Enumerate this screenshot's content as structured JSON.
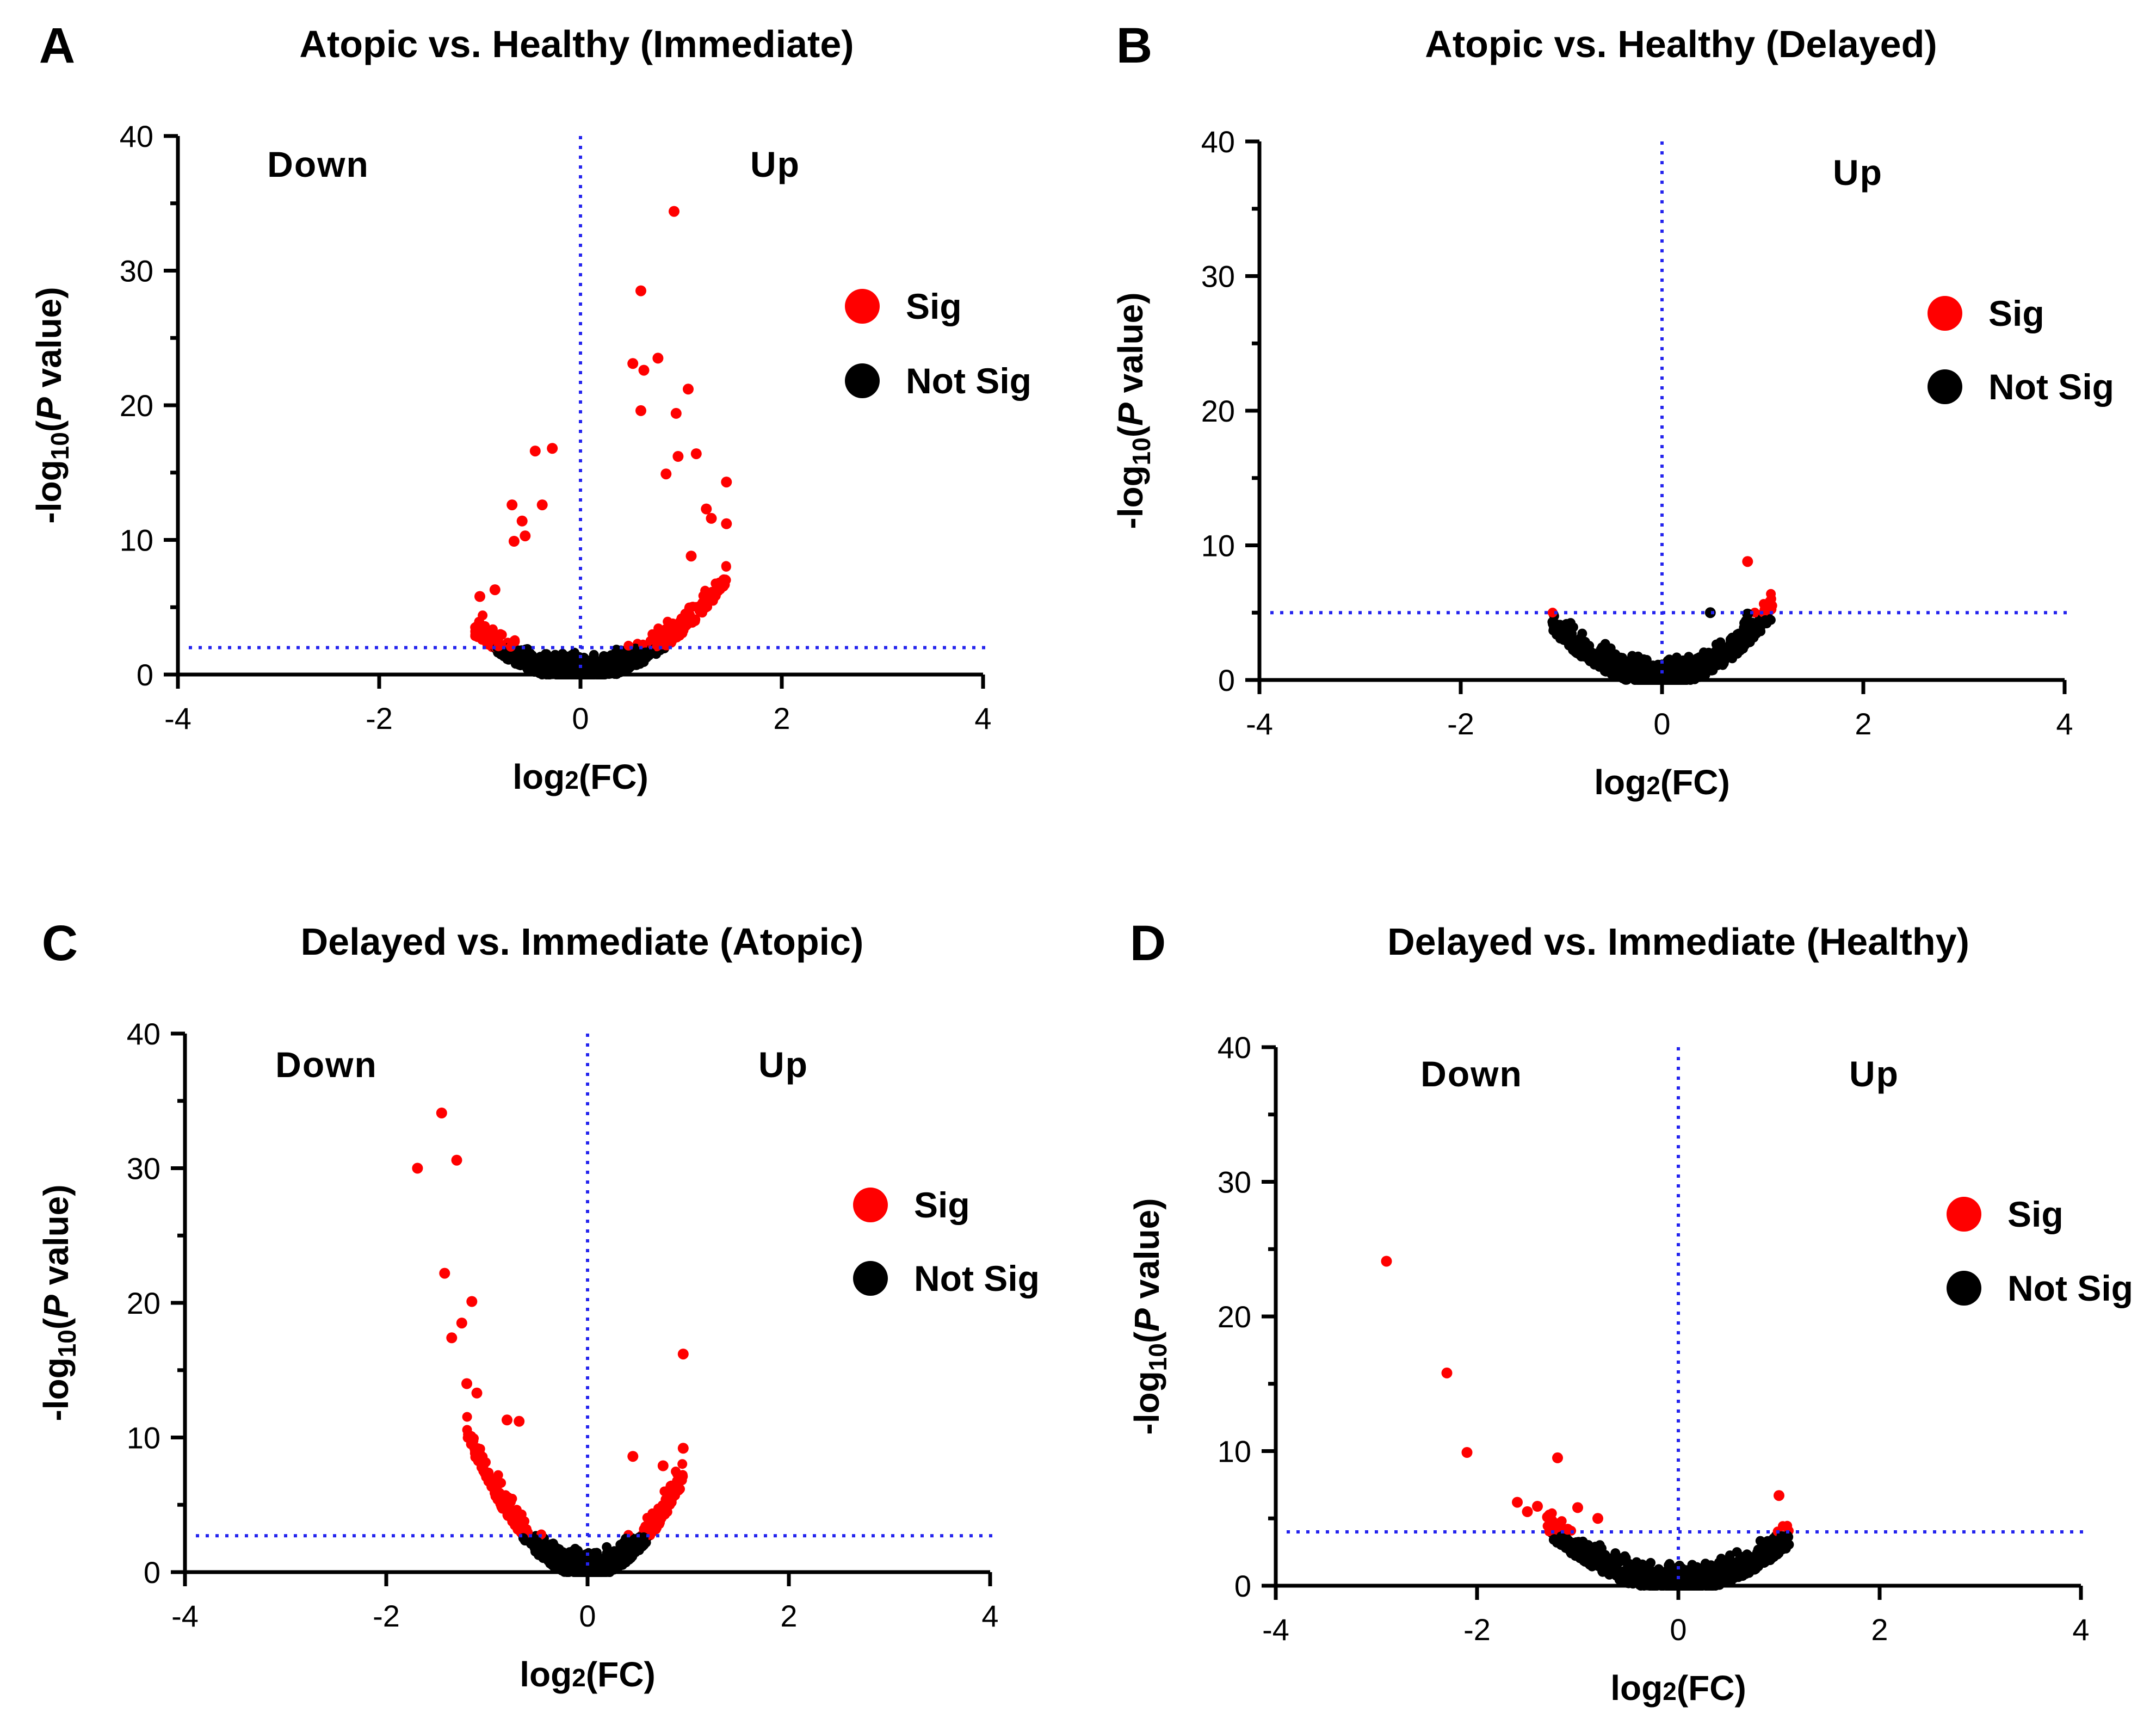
{
  "figure": {
    "panels": [
      "A",
      "B",
      "C",
      "D"
    ]
  },
  "chart_data": [
    {
      "panel_letter": "A",
      "type": "scatter",
      "title": "Atopic vs. Healthy (Immediate)",
      "xlabel": "log2(FC)",
      "ylabel": "-log10(P value)",
      "xlim": [
        -4,
        4
      ],
      "ylim": [
        0,
        40
      ],
      "xticks": [
        -4,
        -2,
        0,
        2,
        4
      ],
      "yticks": [
        0,
        10,
        20,
        30,
        40
      ],
      "regions": {
        "down": "Down",
        "up": "Up"
      },
      "legend": {
        "sig": "Sig",
        "notsig": "Not Sig"
      },
      "legend_position": "right",
      "threshold_y": 2.0,
      "vline_x": 0,
      "colors": {
        "sig": "#ff0000",
        "notsig": "#000000",
        "threshold": "#2424ee"
      },
      "cloud": {
        "left": -1.05,
        "right": 1.45,
        "k_left": 3.0,
        "k_right": 3.4
      },
      "highlights": [
        [
          0.93,
          34.4
        ],
        [
          0.6,
          28.5
        ],
        [
          0.77,
          23.5
        ],
        [
          0.52,
          23.1
        ],
        [
          0.63,
          22.6
        ],
        [
          1.07,
          21.2
        ],
        [
          0.6,
          19.6
        ],
        [
          0.95,
          19.4
        ],
        [
          1.15,
          16.4
        ],
        [
          0.97,
          16.2
        ],
        [
          1.45,
          14.3
        ],
        [
          0.85,
          14.9
        ],
        [
          1.25,
          12.3
        ],
        [
          1.3,
          11.6
        ],
        [
          1.45,
          11.2
        ],
        [
          -0.45,
          16.6
        ],
        [
          -0.28,
          16.8
        ],
        [
          -0.68,
          12.6
        ],
        [
          -0.38,
          12.6
        ],
        [
          -0.58,
          11.4
        ],
        [
          -0.55,
          10.3
        ],
        [
          -0.66,
          9.9
        ],
        [
          -1.0,
          5.8
        ],
        [
          -0.85,
          6.3
        ],
        [
          1.1,
          8.8
        ]
      ]
    },
    {
      "panel_letter": "B",
      "type": "scatter",
      "title": "Atopic vs. Healthy (Delayed)",
      "xlabel": "log2(FC)",
      "ylabel": "-log10(P value)",
      "xlim": [
        -4,
        4
      ],
      "ylim": [
        0,
        40
      ],
      "xticks": [
        -4,
        -2,
        0,
        2,
        4
      ],
      "yticks": [
        0,
        10,
        20,
        30,
        40
      ],
      "regions": {
        "down": "",
        "up": "Up"
      },
      "legend": {
        "sig": "Sig",
        "notsig": "Not Sig"
      },
      "legend_position": "right",
      "threshold_y": 5.0,
      "vline_x": 0,
      "colors": {
        "sig": "#ff0000",
        "notsig": "#000000",
        "threshold": "#2424ee"
      },
      "cloud": {
        "left": -1.1,
        "right": 1.1,
        "k_left": 3.4,
        "k_right": 4.2
      },
      "highlights": [
        [
          0.85,
          8.8
        ],
        [
          0.48,
          5.0
        ],
        [
          0.85,
          4.9
        ]
      ]
    },
    {
      "panel_letter": "C",
      "type": "scatter",
      "title": "Delayed vs. Immediate (Atopic)",
      "xlabel": "log2(FC)",
      "ylabel": "-log10(P value)",
      "xlim": [
        -4,
        4
      ],
      "ylim": [
        0,
        40
      ],
      "xticks": [
        -4,
        -2,
        0,
        2,
        4
      ],
      "yticks": [
        0,
        10,
        20,
        30,
        40
      ],
      "regions": {
        "down": "Down",
        "up": "Up"
      },
      "legend": {
        "sig": "Sig",
        "notsig": "Not Sig"
      },
      "legend_position": "right",
      "threshold_y": 2.7,
      "vline_x": 0,
      "colors": {
        "sig": "#ff0000",
        "notsig": "#000000",
        "threshold": "#2424ee"
      },
      "cloud": {
        "left": -1.2,
        "right": 0.95,
        "k_left": 7.2,
        "k_right": 7.8
      },
      "highlights": [
        [
          -1.45,
          34.1
        ],
        [
          -1.3,
          30.6
        ],
        [
          -1.69,
          30.0
        ],
        [
          -1.42,
          22.2
        ],
        [
          -1.15,
          20.1
        ],
        [
          -1.25,
          18.5
        ],
        [
          -1.35,
          17.4
        ],
        [
          -1.2,
          14.0
        ],
        [
          -1.1,
          13.3
        ],
        [
          -0.8,
          11.3
        ],
        [
          -0.68,
          11.2
        ],
        [
          0.95,
          16.2
        ],
        [
          0.95,
          9.2
        ],
        [
          0.45,
          8.6
        ],
        [
          0.75,
          7.9
        ]
      ]
    },
    {
      "panel_letter": "D",
      "type": "scatter",
      "title": "Delayed vs. Immediate (Healthy)",
      "xlabel": "log2(FC)",
      "ylabel": "-log10(P value)",
      "xlim": [
        -4,
        4
      ],
      "ylim": [
        0,
        40
      ],
      "xticks": [
        -4,
        -2,
        0,
        2,
        4
      ],
      "yticks": [
        0,
        10,
        20,
        30,
        40
      ],
      "regions": {
        "down": "Down",
        "up": "Up"
      },
      "legend": {
        "sig": "Sig",
        "notsig": "Not Sig"
      },
      "legend_position": "right",
      "threshold_y": 4.0,
      "vline_x": 0,
      "colors": {
        "sig": "#ff0000",
        "notsig": "#000000",
        "threshold": "#2424ee"
      },
      "cloud": {
        "left": -1.3,
        "right": 1.1,
        "k_left": 2.5,
        "k_right": 2.8
      },
      "highlights": [
        [
          -2.9,
          24.1
        ],
        [
          -2.3,
          15.8
        ],
        [
          -2.1,
          9.9
        ],
        [
          -1.2,
          9.5
        ],
        [
          -1.6,
          6.2
        ],
        [
          -1.4,
          5.9
        ],
        [
          -1.0,
          5.8
        ],
        [
          -1.5,
          5.5
        ],
        [
          -1.3,
          5.1
        ],
        [
          -0.8,
          5.0
        ],
        [
          -1.2,
          4.6
        ],
        [
          -1.1,
          4.2
        ],
        [
          1.0,
          6.7
        ]
      ]
    }
  ]
}
